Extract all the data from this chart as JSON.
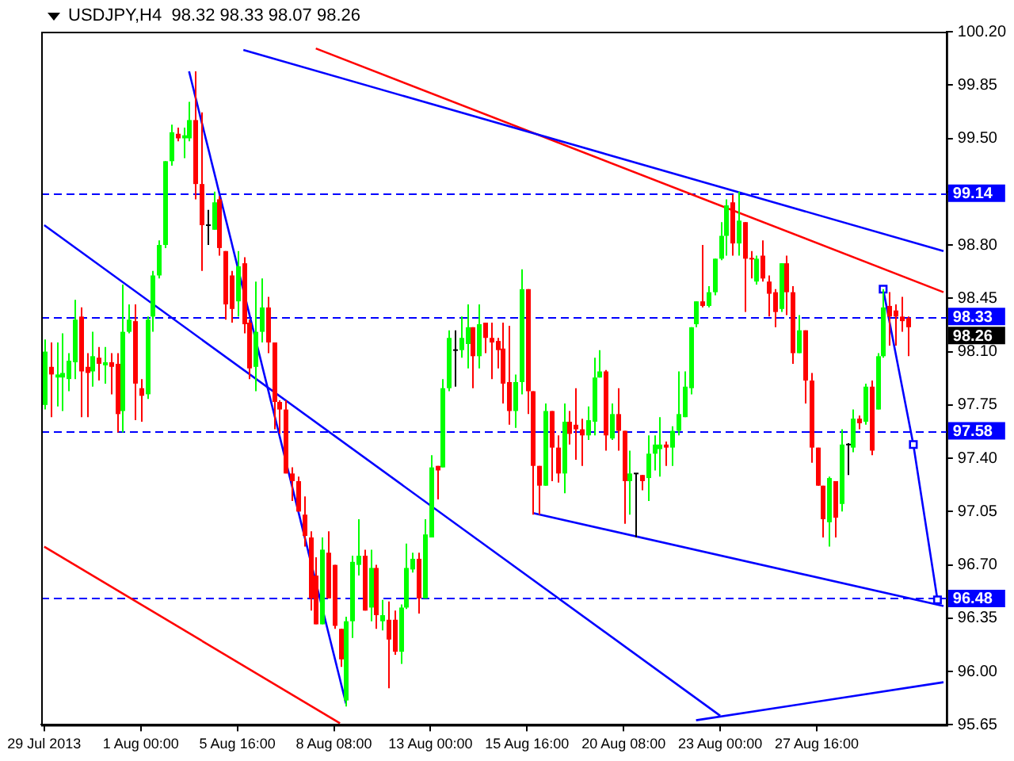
{
  "chart_data": {
    "type": "candlestick",
    "title": "USDJPY,H4  98.32 98.33 98.07 98.26",
    "categories": [
      "29 Jul 2013",
      null,
      null,
      null,
      null,
      null,
      null,
      null,
      null,
      null,
      null,
      null,
      null,
      null,
      null,
      null,
      "1 Aug 00:00",
      null,
      null,
      null,
      null,
      null,
      null,
      null,
      null,
      null,
      null,
      null,
      null,
      null,
      null,
      null,
      "5 Aug 16:00",
      null,
      null,
      null,
      null,
      null,
      null,
      null,
      null,
      null,
      null,
      null,
      null,
      null,
      null,
      null,
      "8 Aug 08:00",
      null,
      null,
      null,
      null,
      null,
      null,
      null,
      null,
      null,
      null,
      null,
      null,
      null,
      null,
      null,
      "13 Aug 00:00",
      null,
      null,
      null,
      null,
      null,
      null,
      null,
      null,
      null,
      null,
      null,
      null,
      null,
      null,
      null,
      "15 Aug 16:00",
      null,
      null,
      null,
      null,
      null,
      null,
      null,
      null,
      null,
      null,
      null,
      null,
      null,
      null,
      null,
      "20 Aug 08:00",
      null,
      null,
      null,
      null,
      null,
      null,
      null,
      null,
      null,
      null,
      null,
      null,
      null,
      null,
      null,
      "23 Aug 00:00",
      null,
      null,
      null,
      null,
      null,
      null,
      null,
      null,
      null,
      null,
      null,
      null,
      null,
      null,
      null,
      "27 Aug 16:00",
      null,
      null,
      null,
      null,
      null,
      null,
      null,
      null,
      null,
      null,
      null,
      null,
      null,
      null,
      null,
      null,
      null,
      null,
      null,
      null,
      null
    ],
    "ohlc": [
      [
        97.75,
        98.18,
        97.72,
        98.1
      ],
      [
        98.0,
        98.16,
        97.67,
        97.95
      ],
      [
        97.93,
        98.16,
        97.74,
        97.95
      ],
      [
        97.93,
        98.22,
        97.71,
        97.96
      ],
      [
        97.92,
        98.09,
        97.84,
        98.04
      ],
      [
        98.03,
        98.44,
        97.92,
        98.31
      ],
      [
        98.33,
        98.39,
        97.67,
        97.97
      ],
      [
        98.0,
        98.09,
        97.67,
        97.96
      ],
      [
        97.97,
        98.23,
        97.87,
        98.07
      ],
      [
        98.06,
        98.13,
        97.91,
        98.02
      ],
      [
        98.01,
        98.13,
        97.89,
        98.03
      ],
      [
        98.03,
        98.09,
        97.82,
        98.0
      ],
      [
        98.02,
        98.09,
        97.57,
        97.69
      ],
      [
        97.71,
        98.54,
        97.57,
        98.23
      ],
      [
        98.23,
        98.41,
        98.22,
        98.31
      ],
      [
        98.3,
        98.41,
        97.65,
        97.89
      ],
      [
        97.86,
        97.92,
        97.64,
        97.81
      ],
      [
        97.82,
        98.33,
        97.79,
        98.31
      ],
      [
        98.33,
        98.63,
        98.23,
        98.6
      ],
      [
        98.6,
        98.83,
        98.58,
        98.8
      ],
      [
        98.8,
        99.35,
        98.78,
        99.35
      ],
      [
        99.35,
        99.59,
        99.32,
        99.54
      ],
      [
        99.53,
        99.57,
        99.48,
        99.5
      ],
      [
        99.5,
        99.57,
        99.37,
        99.52
      ],
      [
        99.5,
        99.74,
        99.48,
        99.62
      ],
      [
        99.62,
        99.94,
        99.1,
        99.2
      ],
      [
        99.2,
        99.67,
        98.63,
        98.93
      ],
      [
        98.93,
        99.03,
        98.8,
        98.93
      ],
      [
        98.9,
        99.15,
        98.9,
        99.08
      ],
      [
        99.1,
        99.12,
        98.73,
        98.78
      ],
      [
        98.76,
        98.76,
        98.31,
        98.41
      ],
      [
        98.6,
        98.63,
        98.29,
        98.38
      ],
      [
        98.43,
        98.76,
        98.33,
        98.66
      ],
      [
        98.68,
        98.72,
        98.22,
        98.28
      ],
      [
        98.29,
        98.31,
        97.92,
        97.99
      ],
      [
        98.0,
        98.56,
        97.84,
        98.23
      ],
      [
        98.23,
        98.58,
        98.16,
        98.39
      ],
      [
        98.39,
        98.46,
        98.09,
        98.16
      ],
      [
        98.16,
        98.16,
        97.59,
        97.77
      ],
      [
        97.77,
        97.78,
        97.56,
        97.72
      ],
      [
        97.72,
        97.78,
        97.3,
        97.3
      ],
      [
        97.3,
        97.34,
        97.12,
        97.25
      ],
      [
        97.25,
        97.28,
        97.05,
        97.05
      ],
      [
        97.03,
        97.15,
        96.82,
        96.89
      ],
      [
        96.88,
        96.92,
        96.4,
        96.48
      ],
      [
        96.63,
        96.75,
        96.31,
        96.31
      ],
      [
        96.31,
        96.88,
        96.31,
        96.8
      ],
      [
        96.78,
        96.92,
        96.48,
        96.48
      ],
      [
        96.7,
        96.7,
        96.28,
        96.3
      ],
      [
        96.28,
        96.28,
        96.03,
        96.08
      ],
      [
        95.81,
        96.36,
        95.77,
        96.33
      ],
      [
        96.33,
        96.76,
        96.22,
        96.72
      ],
      [
        96.7,
        97.0,
        96.63,
        96.76
      ],
      [
        96.76,
        96.8,
        96.4,
        96.4
      ],
      [
        96.42,
        96.8,
        96.33,
        96.68
      ],
      [
        96.68,
        96.7,
        96.28,
        96.37
      ],
      [
        96.33,
        96.47,
        96.27,
        96.37
      ],
      [
        96.34,
        96.46,
        95.89,
        96.21
      ],
      [
        96.34,
        96.4,
        96.11,
        96.13
      ],
      [
        96.13,
        96.44,
        96.05,
        96.42
      ],
      [
        96.42,
        96.84,
        96.41,
        96.68
      ],
      [
        96.67,
        96.78,
        96.65,
        96.74
      ],
      [
        96.74,
        96.78,
        96.38,
        96.48
      ],
      [
        96.48,
        97.0,
        96.48,
        96.9
      ],
      [
        96.88,
        97.42,
        96.88,
        97.34
      ],
      [
        97.35,
        97.35,
        97.13,
        97.32
      ],
      [
        97.34,
        97.92,
        97.34,
        97.86
      ],
      [
        97.86,
        98.24,
        97.84,
        98.19
      ],
      [
        98.11,
        98.24,
        97.87,
        98.11
      ],
      [
        98.11,
        98.33,
        98.06,
        98.19
      ],
      [
        98.15,
        98.41,
        97.99,
        98.26
      ],
      [
        98.26,
        98.26,
        97.86,
        98.07
      ],
      [
        98.07,
        98.41,
        97.99,
        98.28
      ],
      [
        98.29,
        98.29,
        98.09,
        98.19
      ],
      [
        98.19,
        98.29,
        97.92,
        98.16
      ],
      [
        98.17,
        98.19,
        97.99,
        98.11
      ],
      [
        98.12,
        98.29,
        97.76,
        97.89
      ],
      [
        97.9,
        98.27,
        97.62,
        97.71
      ],
      [
        97.71,
        97.95,
        97.6,
        97.9
      ],
      [
        97.9,
        98.64,
        97.82,
        98.51
      ],
      [
        98.51,
        98.51,
        97.69,
        97.84
      ],
      [
        97.84,
        97.84,
        97.03,
        97.35
      ],
      [
        97.35,
        97.35,
        97.03,
        97.22
      ],
      [
        97.22,
        97.76,
        97.22,
        97.71
      ],
      [
        97.71,
        97.71,
        97.25,
        97.47
      ],
      [
        97.47,
        97.55,
        97.24,
        97.3
      ],
      [
        97.3,
        97.76,
        97.17,
        97.64
      ],
      [
        97.64,
        97.71,
        97.49,
        97.56
      ],
      [
        97.62,
        97.86,
        97.39,
        97.59
      ],
      [
        97.59,
        97.66,
        97.35,
        97.55
      ],
      [
        97.55,
        97.74,
        97.52,
        97.65
      ],
      [
        97.64,
        98.06,
        97.55,
        97.93
      ],
      [
        97.93,
        98.11,
        97.93,
        97.97
      ],
      [
        97.97,
        97.98,
        97.45,
        97.55
      ],
      [
        97.53,
        97.76,
        97.52,
        97.69
      ],
      [
        97.69,
        97.86,
        97.45,
        97.58
      ],
      [
        97.58,
        97.58,
        96.97,
        97.25
      ],
      [
        97.25,
        97.45,
        97.03,
        97.3
      ],
      [
        97.3,
        97.3,
        96.88,
        97.3
      ],
      [
        97.29,
        97.29,
        97.19,
        97.25
      ],
      [
        97.27,
        97.55,
        97.12,
        97.43
      ],
      [
        97.43,
        97.55,
        97.32,
        97.49
      ],
      [
        97.46,
        97.67,
        97.28,
        97.49
      ],
      [
        97.49,
        97.51,
        97.35,
        97.47
      ],
      [
        97.47,
        97.61,
        97.35,
        97.58
      ],
      [
        97.58,
        97.97,
        97.55,
        97.69
      ],
      [
        97.67,
        97.97,
        97.67,
        97.87
      ],
      [
        97.86,
        98.26,
        97.82,
        98.26
      ],
      [
        98.28,
        98.43,
        98.26,
        98.43
      ],
      [
        98.43,
        98.8,
        98.39,
        98.4
      ],
      [
        98.4,
        98.53,
        98.39,
        98.49
      ],
      [
        98.49,
        98.71,
        98.47,
        98.71
      ],
      [
        98.71,
        98.95,
        98.7,
        98.86
      ],
      [
        98.86,
        99.1,
        98.73,
        99.06
      ],
      [
        99.08,
        99.13,
        98.73,
        98.81
      ],
      [
        98.81,
        99.15,
        98.73,
        98.96
      ],
      [
        98.95,
        98.95,
        98.36,
        98.71
      ],
      [
        98.71,
        98.76,
        98.58,
        98.7
      ],
      [
        98.56,
        98.73,
        98.54,
        98.71
      ],
      [
        98.73,
        98.83,
        98.56,
        98.58
      ],
      [
        98.56,
        98.6,
        98.33,
        98.48
      ],
      [
        98.49,
        98.51,
        98.26,
        98.36
      ],
      [
        98.38,
        98.68,
        98.36,
        98.68
      ],
      [
        98.68,
        98.73,
        98.34,
        98.49
      ],
      [
        98.49,
        98.53,
        98.02,
        98.09
      ],
      [
        98.09,
        98.34,
        98.09,
        98.24
      ],
      [
        98.24,
        98.24,
        97.76,
        97.91
      ],
      [
        97.91,
        97.96,
        97.37,
        97.47
      ],
      [
        97.47,
        97.47,
        97.22,
        97.22
      ],
      [
        97.22,
        97.22,
        96.88,
        97.0
      ],
      [
        96.98,
        97.28,
        96.82,
        97.27
      ],
      [
        97.25,
        97.25,
        96.88,
        97.01
      ],
      [
        97.1,
        97.59,
        97.05,
        97.49
      ],
      [
        97.49,
        97.5,
        97.29,
        97.49
      ],
      [
        97.47,
        97.72,
        97.44,
        97.66
      ],
      [
        97.66,
        97.68,
        97.59,
        97.63
      ],
      [
        97.64,
        97.89,
        97.62,
        97.87
      ],
      [
        97.87,
        97.91,
        97.42,
        97.45
      ],
      [
        97.72,
        98.09,
        97.72,
        98.07
      ],
      [
        98.07,
        98.51,
        98.06,
        98.39
      ],
      [
        98.4,
        98.49,
        98.14,
        98.33
      ],
      [
        98.37,
        98.41,
        98.14,
        98.33
      ],
      [
        98.33,
        98.46,
        98.23,
        98.3
      ],
      [
        98.32,
        98.33,
        98.07,
        98.26
      ],
      null,
      null,
      null,
      null,
      null,
      null
    ],
    "colors": [
      "#00ff00",
      "#ff0000",
      "#00ff00",
      "#00ff00",
      "#00ff00",
      "#00ff00",
      "#ff0000",
      "#ff0000",
      "#00ff00",
      "#ff0000",
      "#00ff00",
      "#ff0000",
      "#ff0000",
      "#00ff00",
      "#00ff00",
      "#ff0000",
      "#ff0000",
      "#00ff00",
      "#00ff00",
      "#00ff00",
      "#00ff00",
      "#00ff00",
      "#ff0000",
      "#00ff00",
      "#00ff00",
      "#ff0000",
      "#ff0000",
      "#000000",
      "#00ff00",
      "#ff0000",
      "#ff0000",
      "#ff0000",
      "#00ff00",
      "#ff0000",
      "#ff0000",
      "#00ff00",
      "#00ff00",
      "#ff0000",
      "#ff0000",
      "#ff0000",
      "#ff0000",
      "#ff0000",
      "#ff0000",
      "#ff0000",
      "#ff0000",
      "#ff0000",
      "#00ff00",
      "#ff0000",
      "#ff0000",
      "#ff0000",
      "#00ff00",
      "#00ff00",
      "#00ff00",
      "#ff0000",
      "#00ff00",
      "#ff0000",
      "#00ff00",
      "#ff0000",
      "#ff0000",
      "#00ff00",
      "#00ff00",
      "#00ff00",
      "#ff0000",
      "#00ff00",
      "#00ff00",
      "#ff0000",
      "#00ff00",
      "#00ff00",
      "#000000",
      "#00ff00",
      "#00ff00",
      "#ff0000",
      "#00ff00",
      "#ff0000",
      "#ff0000",
      "#ff0000",
      "#ff0000",
      "#ff0000",
      "#00ff00",
      "#00ff00",
      "#ff0000",
      "#ff0000",
      "#ff0000",
      "#00ff00",
      "#ff0000",
      "#ff0000",
      "#00ff00",
      "#ff0000",
      "#ff0000",
      "#ff0000",
      "#00ff00",
      "#00ff00",
      "#00ff00",
      "#ff0000",
      "#00ff00",
      "#ff0000",
      "#ff0000",
      "#00ff00",
      "#000000",
      "#ff0000",
      "#00ff00",
      "#00ff00",
      "#00ff00",
      "#ff0000",
      "#00ff00",
      "#00ff00",
      "#00ff00",
      "#00ff00",
      "#00ff00",
      "#ff0000",
      "#00ff00",
      "#00ff00",
      "#00ff00",
      "#00ff00",
      "#ff0000",
      "#00ff00",
      "#ff0000",
      "#ff0000",
      "#00ff00",
      "#ff0000",
      "#ff0000",
      "#ff0000",
      "#00ff00",
      "#ff0000",
      "#ff0000",
      "#00ff00",
      "#ff0000",
      "#ff0000",
      "#ff0000",
      "#ff0000",
      "#00ff00",
      "#ff0000",
      "#00ff00",
      "#000000",
      "#00ff00",
      "#ff0000",
      "#00ff00",
      "#ff0000",
      "#00ff00",
      "#00ff00",
      "#ff0000",
      "#ff0000",
      "#ff0000",
      "#ff0000",
      null,
      null,
      null,
      null,
      null,
      null
    ],
    "series": [
      {
        "type": "line",
        "color": "#0000ff",
        "values": [
          null,
          null,
          null,
          null,
          null,
          null,
          null,
          null,
          null,
          null,
          null,
          null,
          null,
          null,
          null,
          null,
          null,
          null,
          null,
          null,
          null,
          null,
          null,
          null,
          null,
          null,
          null,
          null,
          null,
          null,
          null,
          null,
          null,
          100.08,
          null,
          null,
          null,
          null,
          null,
          null,
          null,
          null,
          null,
          null,
          null,
          null,
          null,
          null,
          null,
          null,
          null,
          null,
          null,
          null,
          null,
          null,
          null,
          null,
          null,
          null,
          null,
          null,
          null,
          null,
          null,
          null,
          null,
          null,
          null,
          null,
          null,
          null,
          null,
          null,
          null,
          null,
          null,
          null,
          null,
          null,
          null,
          null,
          null,
          null,
          null,
          null,
          null,
          null,
          null,
          null,
          null,
          null,
          null,
          null,
          null,
          null,
          null,
          null,
          null,
          null,
          null,
          null,
          null,
          null,
          null,
          null,
          null,
          null,
          null,
          null,
          null,
          null,
          null,
          null,
          null,
          null,
          null,
          null,
          null,
          null,
          null,
          null,
          null,
          null,
          null,
          null,
          null,
          null,
          null,
          null,
          null,
          null,
          null,
          null,
          null,
          null,
          null,
          null,
          null,
          null,
          null,
          null,
          null,
          null,
          null,
          null,
          null,
          null,
          null,
          98.76
        ]
      },
      {
        "type": "line",
        "color": "#ff0000",
        "values": [
          null,
          null,
          null,
          null,
          null,
          null,
          null,
          null,
          null,
          null,
          null,
          null,
          null,
          null,
          null,
          null,
          null,
          null,
          null,
          null,
          null,
          null,
          null,
          null,
          null,
          null,
          null,
          null,
          null,
          null,
          null,
          null,
          null,
          null,
          null,
          null,
          null,
          null,
          null,
          null,
          null,
          null,
          null,
          null,
          null,
          100.09,
          null,
          null,
          null,
          null,
          null,
          null,
          null,
          null,
          null,
          null,
          null,
          null,
          null,
          null,
          null,
          null,
          null,
          null,
          null,
          null,
          null,
          null,
          null,
          null,
          null,
          null,
          null,
          null,
          null,
          null,
          null,
          null,
          null,
          null,
          null,
          null,
          null,
          null,
          null,
          null,
          null,
          null,
          null,
          null,
          null,
          null,
          null,
          null,
          null,
          null,
          null,
          null,
          null,
          null,
          null,
          null,
          null,
          null,
          null,
          null,
          null,
          null,
          null,
          null,
          null,
          null,
          null,
          null,
          null,
          null,
          null,
          null,
          null,
          null,
          null,
          null,
          null,
          null,
          null,
          null,
          null,
          null,
          null,
          null,
          null,
          null,
          null,
          null,
          null,
          null,
          null,
          null,
          null,
          null,
          null,
          null,
          null,
          null,
          null,
          null,
          null,
          null,
          null,
          98.49
        ]
      },
      {
        "type": "line",
        "color": "#ff0000",
        "values": [
          96.82,
          null,
          null,
          null,
          null,
          null,
          null,
          null,
          null,
          null,
          null,
          null,
          null,
          null,
          null,
          null,
          null,
          null,
          null,
          null,
          null,
          null,
          null,
          null,
          null,
          null,
          null,
          null,
          null,
          null,
          null,
          null,
          null,
          null,
          null,
          null,
          null,
          null,
          null,
          null,
          null,
          null,
          null,
          null,
          null,
          null,
          null,
          null,
          null,
          95.66,
          null,
          null,
          null,
          null,
          null,
          null,
          null,
          null,
          null,
          null,
          null,
          null,
          null,
          null,
          null,
          null,
          null,
          null,
          null,
          null,
          null,
          null,
          null,
          null,
          null,
          null,
          null,
          null,
          null,
          null,
          null,
          null,
          null,
          null,
          null,
          null,
          null,
          null,
          null,
          null,
          null,
          null,
          null,
          null,
          null,
          null,
          null,
          null,
          null,
          null,
          null,
          null,
          null,
          null,
          null,
          null,
          null,
          null,
          null,
          null,
          null,
          null,
          null,
          null,
          null,
          null,
          null,
          null,
          null,
          null,
          null,
          null,
          null,
          null,
          null,
          null,
          null,
          null,
          null,
          null,
          null,
          null,
          null,
          null,
          null,
          null,
          null,
          null,
          null,
          null,
          null,
          null,
          null,
          null,
          null,
          null,
          null,
          null,
          null,
          null
        ]
      },
      {
        "type": "line",
        "color": "#0000ff",
        "values": [
          98.93,
          null,
          null,
          null,
          null,
          null,
          null,
          null,
          null,
          null,
          null,
          null,
          null,
          null,
          null,
          null,
          null,
          null,
          null,
          null,
          null,
          null,
          null,
          null,
          null,
          null,
          null,
          null,
          null,
          null,
          null,
          null,
          null,
          null,
          null,
          null,
          null,
          null,
          null,
          null,
          null,
          null,
          null,
          null,
          null,
          null,
          null,
          null,
          null,
          null,
          null,
          null,
          null,
          null,
          null,
          null,
          null,
          null,
          null,
          null,
          null,
          null,
          null,
          null,
          null,
          null,
          null,
          null,
          null,
          null,
          null,
          null,
          null,
          null,
          null,
          null,
          null,
          null,
          null,
          null,
          null,
          null,
          null,
          null,
          null,
          null,
          null,
          null,
          null,
          null,
          null,
          null,
          null,
          null,
          null,
          null,
          null,
          null,
          null,
          null,
          null,
          null,
          null,
          null,
          null,
          null,
          null,
          null,
          null,
          null,
          null,
          null,
          95.71,
          null,
          null,
          null,
          null,
          null,
          null,
          null,
          null,
          null,
          null,
          null,
          null,
          null,
          null,
          null,
          null,
          null,
          null,
          null,
          null,
          null,
          null,
          null,
          null,
          null,
          null,
          null,
          null,
          null,
          null,
          null,
          null,
          null,
          null,
          null,
          null,
          null
        ]
      },
      {
        "type": "line",
        "color": "#0000ff",
        "values": [
          null,
          null,
          null,
          null,
          null,
          null,
          null,
          null,
          null,
          null,
          null,
          null,
          null,
          null,
          null,
          null,
          null,
          null,
          null,
          null,
          null,
          null,
          null,
          null,
          99.94,
          null,
          null,
          null,
          null,
          null,
          null,
          null,
          null,
          null,
          null,
          null,
          null,
          null,
          null,
          null,
          null,
          null,
          null,
          null,
          null,
          null,
          null,
          null,
          null,
          null,
          95.79,
          null,
          null,
          null,
          null,
          null,
          null,
          null,
          null,
          null,
          null,
          null,
          null,
          null,
          null,
          null,
          null,
          null,
          null,
          null,
          null,
          null,
          null,
          null,
          null,
          null,
          null,
          null,
          null,
          null,
          null,
          null,
          null,
          null,
          null,
          null,
          null,
          null,
          null,
          null,
          null,
          null,
          null,
          null,
          null,
          null,
          null,
          null,
          null,
          null,
          null,
          null,
          null,
          null,
          null,
          null,
          null,
          null,
          null,
          null,
          null,
          null,
          null,
          null,
          null,
          null,
          null,
          null,
          null,
          null,
          null,
          null,
          null,
          null,
          null,
          null,
          null,
          null,
          null,
          null,
          null,
          null,
          null,
          null,
          null,
          null,
          null,
          null,
          null,
          null,
          null,
          null,
          null,
          null,
          null,
          null,
          null,
          null,
          null,
          null
        ]
      },
      {
        "type": "line",
        "color": "#0000ff",
        "values": [
          null,
          null,
          null,
          null,
          null,
          null,
          null,
          null,
          null,
          null,
          null,
          null,
          null,
          null,
          null,
          null,
          null,
          null,
          null,
          null,
          null,
          null,
          null,
          null,
          null,
          null,
          null,
          null,
          null,
          null,
          null,
          null,
          null,
          null,
          null,
          null,
          null,
          null,
          null,
          null,
          null,
          null,
          null,
          null,
          null,
          null,
          null,
          null,
          null,
          null,
          null,
          null,
          null,
          null,
          null,
          null,
          null,
          null,
          null,
          null,
          null,
          null,
          null,
          null,
          null,
          null,
          null,
          null,
          null,
          null,
          null,
          null,
          null,
          null,
          null,
          null,
          null,
          null,
          null,
          null,
          null,
          97.04,
          null,
          null,
          null,
          null,
          null,
          null,
          null,
          null,
          null,
          null,
          null,
          null,
          null,
          null,
          null,
          null,
          null,
          null,
          null,
          null,
          null,
          null,
          null,
          null,
          null,
          null,
          null,
          null,
          null,
          null,
          null,
          null,
          null,
          null,
          null,
          null,
          null,
          null,
          null,
          null,
          null,
          null,
          null,
          null,
          null,
          null,
          null,
          null,
          null,
          null,
          null,
          null,
          null,
          null,
          null,
          null,
          null,
          null,
          null,
          null,
          null,
          null,
          null,
          null,
          null,
          null,
          null,
          96.43
        ]
      },
      {
        "type": "line",
        "color": "#0000ff",
        "values": [
          null,
          null,
          null,
          null,
          null,
          null,
          null,
          null,
          null,
          null,
          null,
          null,
          null,
          null,
          null,
          null,
          null,
          null,
          null,
          null,
          null,
          null,
          null,
          null,
          null,
          null,
          null,
          null,
          null,
          null,
          null,
          null,
          null,
          null,
          null,
          null,
          null,
          null,
          null,
          null,
          null,
          null,
          null,
          null,
          null,
          null,
          null,
          null,
          null,
          null,
          null,
          null,
          null,
          null,
          null,
          null,
          null,
          null,
          null,
          null,
          null,
          null,
          null,
          null,
          null,
          null,
          null,
          null,
          null,
          null,
          null,
          null,
          null,
          null,
          null,
          null,
          null,
          null,
          null,
          null,
          null,
          null,
          null,
          null,
          null,
          null,
          null,
          null,
          null,
          null,
          null,
          null,
          null,
          null,
          null,
          null,
          null,
          null,
          null,
          null,
          null,
          null,
          null,
          null,
          null,
          null,
          null,
          null,
          95.68,
          null,
          null,
          null,
          null,
          null,
          null,
          null,
          null,
          null,
          null,
          null,
          null,
          null,
          null,
          null,
          null,
          null,
          null,
          null,
          null,
          null,
          null,
          null,
          null,
          null,
          null,
          null,
          null,
          null,
          null,
          null,
          null,
          null,
          null,
          null,
          null,
          null,
          null,
          null,
          null,
          95.93
        ]
      },
      {
        "type": "line",
        "color": "#0000ff",
        "marker": "square",
        "values": [
          null,
          null,
          null,
          null,
          null,
          null,
          null,
          null,
          null,
          null,
          null,
          null,
          null,
          null,
          null,
          null,
          null,
          null,
          null,
          null,
          null,
          null,
          null,
          null,
          null,
          null,
          null,
          null,
          null,
          null,
          null,
          null,
          null,
          null,
          null,
          null,
          null,
          null,
          null,
          null,
          null,
          null,
          null,
          null,
          null,
          null,
          null,
          null,
          null,
          null,
          null,
          null,
          null,
          null,
          null,
          null,
          null,
          null,
          null,
          null,
          null,
          null,
          null,
          null,
          null,
          null,
          null,
          null,
          null,
          null,
          null,
          null,
          null,
          null,
          null,
          null,
          null,
          null,
          null,
          null,
          null,
          null,
          null,
          null,
          null,
          null,
          null,
          null,
          null,
          null,
          null,
          null,
          null,
          null,
          null,
          null,
          null,
          null,
          null,
          null,
          null,
          null,
          null,
          null,
          null,
          null,
          null,
          null,
          null,
          null,
          null,
          null,
          null,
          null,
          null,
          null,
          null,
          null,
          null,
          null,
          null,
          null,
          null,
          null,
          null,
          null,
          null,
          null,
          null,
          null,
          null,
          null,
          null,
          null,
          null,
          null,
          null,
          null,
          null,
          98.51,
          null,
          null,
          null,
          null,
          97.49,
          null,
          null,
          null,
          96.47,
          null
        ]
      }
    ],
    "ylim": [
      95.65,
      100.2
    ],
    "yticks": [
      {
        "value": 95.65,
        "label": "95.65"
      },
      {
        "value": 96,
        "label": "96.00"
      },
      {
        "value": 96.35,
        "label": "96.35"
      },
      {
        "value": 96.7,
        "label": "96.70"
      },
      {
        "value": 97.05,
        "label": "97.05"
      },
      {
        "value": 97.4,
        "label": "97.40"
      },
      {
        "value": 97.75,
        "label": "97.75"
      },
      {
        "value": 98.1,
        "label": "98.10"
      },
      {
        "value": 98.45,
        "label": "98.45"
      },
      {
        "value": 98.8,
        "label": "98.80"
      },
      {
        "value": 99.15,
        "label": null
      },
      {
        "value": 99.5,
        "label": "99.50"
      },
      {
        "value": 99.85,
        "label": "99.85"
      },
      {
        "value": 100.2,
        "label": "100.20"
      }
    ],
    "ref_lines": [
      {
        "axis": "y",
        "value": 99.14,
        "label": "99.14",
        "color": "#0000ff",
        "line_style": "dashed"
      },
      {
        "axis": "y",
        "value": 98.33,
        "label": "98.33",
        "color": "#0000ff",
        "line_style": "dashed"
      },
      {
        "axis": "y",
        "value": 97.58,
        "label": "97.58",
        "color": "#0000ff",
        "line_style": "dashed"
      },
      {
        "axis": "y",
        "value": 96.48,
        "label": "96.48",
        "color": "#0000ff",
        "line_style": "dashed"
      }
    ],
    "annotations": [
      "98.26"
    ]
  }
}
